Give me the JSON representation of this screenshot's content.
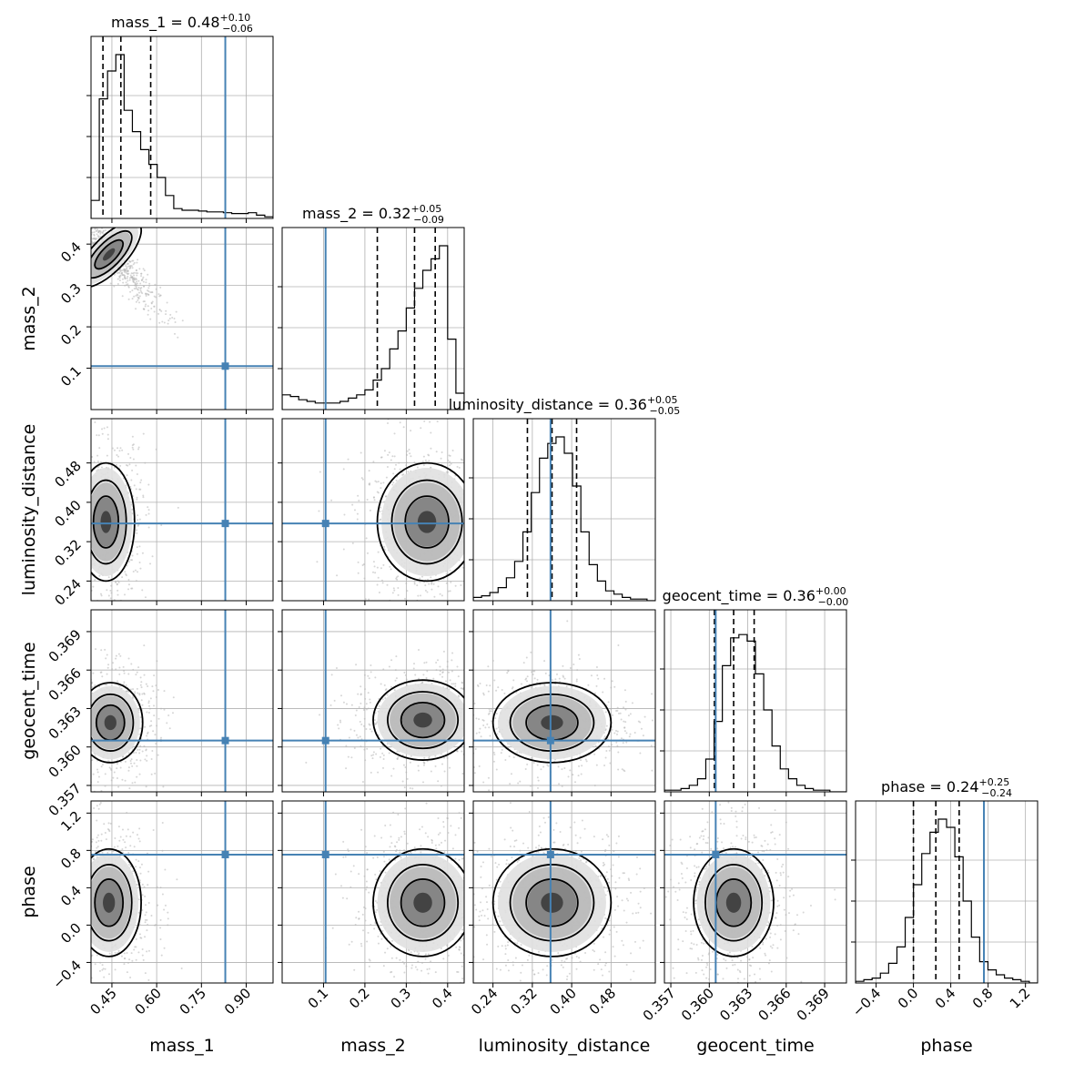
{
  "chart_data": {
    "type": "corner",
    "parameters": [
      "mass_1",
      "mass_2",
      "luminosity_distance",
      "geocent_time",
      "phase"
    ],
    "axis_labels": [
      "mass_1",
      "mass_2",
      "luminosity_distance",
      "geocent_time",
      "phase"
    ],
    "titles": [
      {
        "param": "mass_1",
        "median": "0.48",
        "upper": "+0.10",
        "lower": "−0.06"
      },
      {
        "param": "mass_2",
        "median": "0.32",
        "upper": "+0.05",
        "lower": "−0.09"
      },
      {
        "param": "luminosity_distance",
        "median": "0.36",
        "upper": "+0.05",
        "lower": "−0.05"
      },
      {
        "param": "geocent_time",
        "median": "0.36",
        "upper": "+0.00",
        "lower": "−0.00"
      },
      {
        "param": "phase",
        "median": "0.24",
        "upper": "+0.25",
        "lower": "−0.24"
      }
    ],
    "ranges": [
      [
        0.38,
        0.99
      ],
      [
        0.0,
        0.44
      ],
      [
        0.2,
        0.57
      ],
      [
        0.3565,
        0.3707
      ],
      [
        -0.62,
        1.33
      ]
    ],
    "ticks": [
      [
        {
          "v": 0.45,
          "t": "0.45"
        },
        {
          "v": 0.6,
          "t": "0.60"
        },
        {
          "v": 0.75,
          "t": "0.75"
        },
        {
          "v": 0.9,
          "t": "0.90"
        }
      ],
      [
        {
          "v": 0.1,
          "t": "0.1"
        },
        {
          "v": 0.2,
          "t": "0.2"
        },
        {
          "v": 0.3,
          "t": "0.3"
        },
        {
          "v": 0.4,
          "t": "0.4"
        }
      ],
      [
        {
          "v": 0.24,
          "t": "0.24"
        },
        {
          "v": 0.32,
          "t": "0.32"
        },
        {
          "v": 0.4,
          "t": "0.40"
        },
        {
          "v": 0.48,
          "t": "0.48"
        }
      ],
      [
        {
          "v": 0.357,
          "t": "0.357"
        },
        {
          "v": 0.36,
          "t": "0.360"
        },
        {
          "v": 0.363,
          "t": "0.363"
        },
        {
          "v": 0.366,
          "t": "0.366"
        },
        {
          "v": 0.369,
          "t": "0.369"
        }
      ],
      [
        {
          "v": -0.4,
          "t": "−0.4"
        },
        {
          "v": 0.0,
          "t": "0.0"
        },
        {
          "v": 0.4,
          "t": "0.4"
        },
        {
          "v": 0.8,
          "t": "0.8"
        },
        {
          "v": 1.2,
          "t": "1.2"
        }
      ]
    ],
    "quantiles": [
      [
        0.42,
        0.48,
        0.58
      ],
      [
        0.23,
        0.32,
        0.37
      ],
      [
        0.31,
        0.36,
        0.41
      ],
      [
        0.3604,
        0.3619,
        0.3635
      ],
      [
        0.0,
        0.24,
        0.49
      ]
    ],
    "truths": [
      0.83,
      0.105,
      0.357,
      0.3605,
      0.755
    ],
    "histograms": [
      [
        0.11,
        0.73,
        0.9,
        1.0,
        0.66,
        0.53,
        0.42,
        0.33,
        0.25,
        0.14,
        0.06,
        0.05,
        0.05,
        0.045,
        0.04,
        0.04,
        0.035,
        0.03,
        0.03,
        0.035,
        0.02,
        0.01
      ],
      [
        0.09,
        0.08,
        0.06,
        0.05,
        0.04,
        0.04,
        0.04,
        0.05,
        0.07,
        0.09,
        0.12,
        0.18,
        0.25,
        0.37,
        0.48,
        0.62,
        0.74,
        0.85,
        0.92,
        1.0,
        0.43,
        0.1
      ],
      [
        0.02,
        0.03,
        0.05,
        0.08,
        0.14,
        0.24,
        0.42,
        0.66,
        0.87,
        0.96,
        1.0,
        0.9,
        0.7,
        0.42,
        0.22,
        0.12,
        0.06,
        0.04,
        0.02,
        0.01,
        0.01,
        0.0
      ],
      [
        0.01,
        0.01,
        0.02,
        0.04,
        0.08,
        0.2,
        0.43,
        0.77,
        0.94,
        0.96,
        0.92,
        0.72,
        0.5,
        0.28,
        0.14,
        0.08,
        0.04,
        0.02,
        0.01,
        0.01,
        0.0,
        0.0
      ],
      [
        0.01,
        0.02,
        0.03,
        0.06,
        0.12,
        0.22,
        0.4,
        0.6,
        0.79,
        0.92,
        1.0,
        0.95,
        0.77,
        0.5,
        0.28,
        0.13,
        0.08,
        0.05,
        0.03,
        0.02,
        0.01,
        0.0
      ]
    ],
    "posterior_modes": {
      "mass_1__mass_2": {
        "center": [
          0.44,
          0.375
        ],
        "width": [
          0.05,
          0.04
        ],
        "correlation": -0.93,
        "axis_x": "mass_1",
        "axis_y": "mass_2"
      },
      "mass_1__luminosity_distance": {
        "center": [
          0.43,
          0.36
        ],
        "width": [
          0.04,
          0.05
        ],
        "correlation": 0.0
      },
      "mass_2__luminosity_distance": {
        "center": [
          0.35,
          0.36
        ],
        "width": [
          0.05,
          0.05
        ],
        "correlation": 0.0
      },
      "mass_1__geocent_time": {
        "center": [
          0.445,
          0.3619
        ],
        "width": [
          0.045,
          0.0013
        ],
        "correlation": 0.0
      },
      "mass_2__geocent_time": {
        "center": [
          0.34,
          0.3621
        ],
        "width": [
          0.05,
          0.0013
        ],
        "correlation": 0.0
      },
      "luminosity_distance__geocent_time": {
        "center": [
          0.36,
          0.3619
        ],
        "width": [
          0.05,
          0.0013
        ],
        "correlation": 0.0
      },
      "mass_1__phase": {
        "center": [
          0.44,
          0.24
        ],
        "width": [
          0.045,
          0.24
        ],
        "correlation": 0.0
      },
      "mass_2__phase": {
        "center": [
          0.34,
          0.24
        ],
        "width": [
          0.05,
          0.24
        ],
        "correlation": 0.0
      },
      "luminosity_distance__phase": {
        "center": [
          0.36,
          0.24
        ],
        "width": [
          0.05,
          0.24
        ],
        "correlation": 0.0
      },
      "geocent_time__phase": {
        "center": [
          0.3619,
          0.24
        ],
        "width": [
          0.0013,
          0.24
        ],
        "correlation": 0.0
      }
    },
    "colors": {
      "truth": "#4682b4",
      "contour": "#000000",
      "samples": "#b4b4b4",
      "grid": "#b0b0b0"
    },
    "grid": true
  }
}
